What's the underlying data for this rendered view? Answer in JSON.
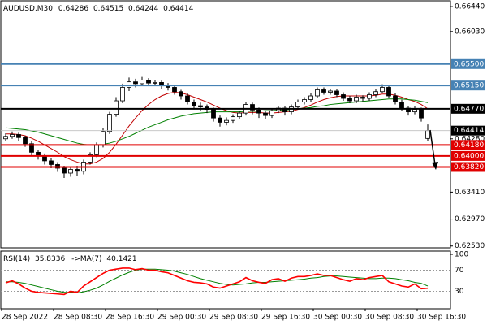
{
  "chart_data": {
    "type": "candlestick",
    "title": "AUDUSD,M30",
    "candles": {
      "open": [
        0.6428,
        0.6432,
        0.6435,
        0.643,
        0.642,
        0.6406,
        0.64,
        0.6392,
        0.6386,
        0.638,
        0.6372,
        0.6378,
        0.6375,
        0.639,
        0.6402,
        0.6418,
        0.644,
        0.6468,
        0.649,
        0.6512,
        0.6521,
        0.6518,
        0.6524,
        0.6519,
        0.652,
        0.6515,
        0.6512,
        0.6505,
        0.6498,
        0.6488,
        0.6482,
        0.648,
        0.6476,
        0.6462,
        0.6455,
        0.6458,
        0.6464,
        0.647,
        0.6484,
        0.6475,
        0.647,
        0.6466,
        0.6474,
        0.6478,
        0.6472,
        0.648,
        0.6488,
        0.6492,
        0.6498,
        0.6508,
        0.6504,
        0.6506,
        0.65,
        0.6494,
        0.649,
        0.6496,
        0.6494,
        0.65,
        0.6505,
        0.6512,
        0.6498,
        0.6488,
        0.6478,
        0.6472,
        0.6476,
        0.64286
      ],
      "high": [
        0.6437,
        0.644,
        0.6438,
        0.6433,
        0.6424,
        0.641,
        0.6404,
        0.6396,
        0.639,
        0.6384,
        0.6382,
        0.6384,
        0.6394,
        0.6406,
        0.6422,
        0.6446,
        0.6472,
        0.6496,
        0.6518,
        0.6528,
        0.6526,
        0.6529,
        0.6527,
        0.6524,
        0.6523,
        0.6519,
        0.6516,
        0.6508,
        0.6502,
        0.6492,
        0.6487,
        0.6484,
        0.6479,
        0.6466,
        0.6463,
        0.6468,
        0.6474,
        0.6488,
        0.6487,
        0.6479,
        0.6474,
        0.6478,
        0.6482,
        0.6481,
        0.6484,
        0.6492,
        0.6496,
        0.6502,
        0.6512,
        0.6512,
        0.651,
        0.6509,
        0.6504,
        0.6498,
        0.65,
        0.6499,
        0.6504,
        0.6509,
        0.6517,
        0.6515,
        0.6502,
        0.6492,
        0.6482,
        0.6482,
        0.6479,
        0.64515
      ],
      "low": [
        0.6424,
        0.6428,
        0.6425,
        0.6415,
        0.64,
        0.6394,
        0.6386,
        0.638,
        0.6374,
        0.6364,
        0.6366,
        0.6368,
        0.637,
        0.6386,
        0.6398,
        0.6414,
        0.6436,
        0.6464,
        0.6486,
        0.6506,
        0.6512,
        0.6514,
        0.6514,
        0.6514,
        0.651,
        0.6507,
        0.65,
        0.6492,
        0.6484,
        0.6476,
        0.6474,
        0.647,
        0.6456,
        0.6448,
        0.645,
        0.6454,
        0.646,
        0.6466,
        0.6468,
        0.6462,
        0.646,
        0.6462,
        0.647,
        0.6466,
        0.6468,
        0.6476,
        0.6484,
        0.6488,
        0.6494,
        0.65,
        0.65,
        0.6496,
        0.649,
        0.6486,
        0.6486,
        0.6489,
        0.649,
        0.6496,
        0.6502,
        0.6494,
        0.6484,
        0.6474,
        0.6466,
        0.6468,
        0.6456,
        0.64244
      ],
      "close": [
        0.6432,
        0.6435,
        0.643,
        0.642,
        0.6406,
        0.64,
        0.6392,
        0.6386,
        0.638,
        0.6372,
        0.6378,
        0.6375,
        0.639,
        0.6402,
        0.6418,
        0.644,
        0.6468,
        0.649,
        0.6512,
        0.6521,
        0.6518,
        0.6524,
        0.6519,
        0.652,
        0.6515,
        0.6512,
        0.6505,
        0.6498,
        0.6488,
        0.6482,
        0.648,
        0.6476,
        0.6462,
        0.6455,
        0.6458,
        0.6464,
        0.647,
        0.6484,
        0.6475,
        0.647,
        0.6466,
        0.6474,
        0.6478,
        0.6472,
        0.648,
        0.6488,
        0.6492,
        0.6498,
        0.6508,
        0.6504,
        0.6506,
        0.65,
        0.6494,
        0.649,
        0.6496,
        0.6494,
        0.65,
        0.6505,
        0.6512,
        0.6498,
        0.6488,
        0.6478,
        0.6472,
        0.6476,
        0.6462,
        0.64414
      ]
    },
    "overlays": [
      {
        "color": "#c00000",
        "values": [
          0.6436,
          0.6436,
          0.6435,
          0.6433,
          0.6429,
          0.6424,
          0.6418,
          0.6412,
          0.6406,
          0.6399,
          0.6394,
          0.639,
          0.6387,
          0.6387,
          0.639,
          0.6396,
          0.6406,
          0.6419,
          0.6434,
          0.6449,
          0.6462,
          0.6474,
          0.6484,
          0.6492,
          0.6498,
          0.6502,
          0.6504,
          0.6503,
          0.65,
          0.6496,
          0.6492,
          0.6488,
          0.6483,
          0.6478,
          0.6474,
          0.6471,
          0.647,
          0.6471,
          0.6471,
          0.6471,
          0.647,
          0.647,
          0.6471,
          0.6472,
          0.6473,
          0.6476,
          0.6479,
          0.6483,
          0.6488,
          0.6492,
          0.6495,
          0.6497,
          0.6498,
          0.6498,
          0.6498,
          0.6498,
          0.6498,
          0.6499,
          0.6501,
          0.6501,
          0.6499,
          0.6496,
          0.6492,
          0.6489,
          0.6484,
          0.6477
        ]
      },
      {
        "color": "#008000",
        "values": [
          0.6446,
          0.6445,
          0.6444,
          0.6443,
          0.6441,
          0.6439,
          0.6436,
          0.6433,
          0.643,
          0.6427,
          0.6424,
          0.6421,
          0.6419,
          0.6418,
          0.6418,
          0.6419,
          0.6421,
          0.6424,
          0.6428,
          0.6432,
          0.6437,
          0.6442,
          0.6447,
          0.6451,
          0.6455,
          0.6459,
          0.6462,
          0.6465,
          0.6467,
          0.6469,
          0.647,
          0.6471,
          0.6472,
          0.6472,
          0.6472,
          0.6472,
          0.6472,
          0.6473,
          0.6473,
          0.6473,
          0.6474,
          0.6474,
          0.6475,
          0.6475,
          0.6476,
          0.6477,
          0.6478,
          0.6479,
          0.6481,
          0.6482,
          0.6484,
          0.6485,
          0.6486,
          0.6487,
          0.6488,
          0.6489,
          0.649,
          0.6491,
          0.6492,
          0.6493,
          0.6493,
          0.6493,
          0.6492,
          0.6491,
          0.6489,
          0.6487
        ]
      }
    ],
    "ylim": [
      0.625,
      0.66545
    ],
    "yticks": [
      {
        "value": 0.6644,
        "label": "0.66440"
      },
      {
        "value": 0.6603,
        "label": "0.66030"
      },
      {
        "value": 0.6428,
        "label": "0.64280"
      },
      {
        "value": 0.6341,
        "label": "0.63410"
      },
      {
        "value": 0.6297,
        "label": "0.62970"
      },
      {
        "value": 0.6253,
        "label": "0.62530"
      }
    ],
    "levels": [
      {
        "value": 0.655,
        "label": "0.65500",
        "color": "#4682b4"
      },
      {
        "value": 0.6515,
        "label": "0.65150",
        "color": "#4682b4"
      },
      {
        "value": 0.6477,
        "label": "0.64770",
        "color": "#000000"
      },
      {
        "value": 0.6418,
        "label": "0.64180",
        "color": "#e00000"
      },
      {
        "value": 0.64,
        "label": "0.64000",
        "color": "#e00000"
      },
      {
        "value": 0.6382,
        "label": "0.63820",
        "color": "#e00000"
      }
    ],
    "x_labels": [
      "28 Sep 2022",
      "28 Sep 08:30",
      "28 Sep 16:30",
      "29 Sep 00:30",
      "29 Sep 08:30",
      "29 Sep 16:30",
      "30 Sep 00:30",
      "30 Sep 08:30",
      "30 Sep 16:30"
    ],
    "rsi": {
      "name": "RSI(14)",
      "color": "#ff0000",
      "values": [
        46,
        50,
        44,
        36,
        30,
        28,
        27,
        26,
        25,
        24,
        30,
        28,
        40,
        48,
        56,
        64,
        70,
        72,
        74,
        74,
        71,
        73,
        70,
        70,
        67,
        65,
        60,
        55,
        50,
        47,
        46,
        44,
        38,
        36,
        40,
        44,
        48,
        56,
        50,
        47,
        45,
        52,
        54,
        49,
        55,
        58,
        58,
        60,
        63,
        60,
        60,
        56,
        52,
        49,
        54,
        52,
        56,
        58,
        60,
        48,
        44,
        40,
        38,
        44,
        35,
        35.8336
      ]
    },
    "rsi_ma": {
      "name": "->MA(7)",
      "color": "#008000",
      "values": [
        48,
        48,
        47,
        45,
        42,
        39,
        36,
        33,
        30,
        28,
        28,
        27,
        29,
        32,
        36,
        42,
        49,
        55,
        61,
        66,
        70,
        72,
        72,
        72,
        71,
        70,
        68,
        65,
        62,
        58,
        54,
        51,
        48,
        45,
        43,
        42,
        43,
        44,
        46,
        47,
        47,
        48,
        49,
        50,
        51,
        52,
        53,
        55,
        56,
        58,
        59,
        59,
        58,
        57,
        56,
        55,
        54,
        54,
        55,
        55,
        54,
        52,
        50,
        47,
        45,
        40.1421
      ]
    },
    "rsi_ylim": [
      0,
      100
    ],
    "rsi_yticks": [
      100,
      70,
      30
    ]
  }
}
